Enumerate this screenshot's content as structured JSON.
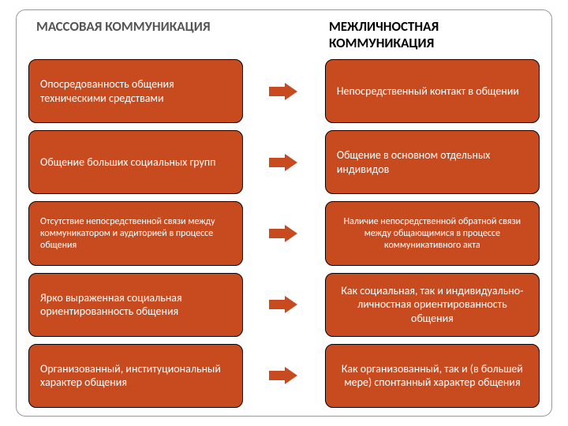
{
  "colors": {
    "box_background": "#c84a1f",
    "arrow_color": "#c84a1f",
    "header_left_color": "#555555",
    "header_right_color": "#000000",
    "box_text_color": "#ffffff",
    "border_color": "#999999"
  },
  "typography": {
    "header_fontsize": 17,
    "box_fontsize": 14,
    "small_fontsize": 12
  },
  "headers": {
    "left": "МАССОВАЯ КОММУНИКАЦИЯ",
    "right": "МЕЖЛИЧНОСТНАЯ КОММУНИКАЦИЯ"
  },
  "rows": [
    {
      "left": "Опосредованность общения техническими средствами",
      "right": "Непосредственный контакт в общении",
      "right_align": "left",
      "left_fontsize": 14,
      "right_fontsize": 14
    },
    {
      "left": "Общение больших социальных групп",
      "right": "Общение в основном отдельных индивидов",
      "right_align": "left",
      "left_fontsize": 14,
      "right_fontsize": 14
    },
    {
      "left": "Отсутствие непосредственной связи между коммуникатором и аудиторией в процессе общения",
      "right": "Наличие непосредственной обратной связи между общающимися в процессе коммуникативного акта",
      "right_align": "center",
      "left_fontsize": 12,
      "right_fontsize": 12
    },
    {
      "left": "Ярко выраженная социальная ориентированность общения",
      "right": "Как социальная, так и индивидуально-личностная ориентированность общения",
      "right_align": "center",
      "left_fontsize": 14,
      "right_fontsize": 14
    },
    {
      "left": "Организованный, институциональный характер общения",
      "right": "Как организованный, так и (в большей мере) спонтанный характер общения",
      "right_align": "center",
      "left_fontsize": 14,
      "right_fontsize": 14
    }
  ]
}
